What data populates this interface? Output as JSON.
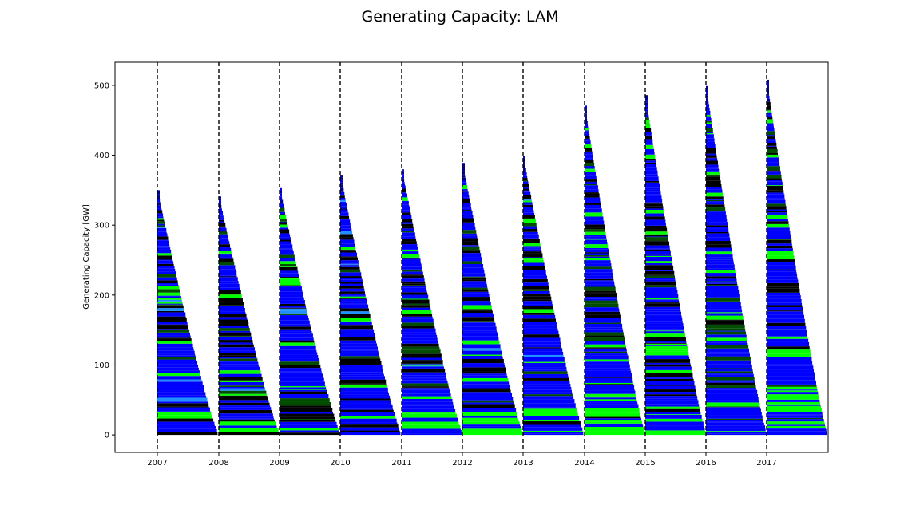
{
  "chart_data": {
    "type": "bar",
    "title": "Generating Capacity: LAM",
    "xlabel": "",
    "ylabel": "Generating Capacity [GW]",
    "x_ticks": [
      "2007",
      "2008",
      "2009",
      "2010",
      "2011",
      "2012",
      "2013",
      "2014",
      "2015",
      "2016",
      "2017"
    ],
    "y_ticks": [
      "0",
      "100",
      "200",
      "300",
      "400",
      "500"
    ],
    "ylim": [
      -25,
      533
    ],
    "grid": false,
    "legend": "none",
    "bar_style": "stacked horizontal capacity bars, each year's stack tapering from the peak total down to the following year",
    "colors": {
      "dark_navy": "#00008b",
      "blue": "#0000ff",
      "black": "#000000",
      "green": "#00ff00",
      "dark_green": "#004d00",
      "light_blue": "#1e90ff",
      "vline": "#000000"
    },
    "series": [
      {
        "year": "2007",
        "peak_total": 350
      },
      {
        "year": "2008",
        "peak_total": 341
      },
      {
        "year": "2009",
        "peak_total": 353
      },
      {
        "year": "2010",
        "peak_total": 372
      },
      {
        "year": "2011",
        "peak_total": 380
      },
      {
        "year": "2012",
        "peak_total": 389
      },
      {
        "year": "2013",
        "peak_total": 399
      },
      {
        "year": "2014",
        "peak_total": 471
      },
      {
        "year": "2015",
        "peak_total": 486
      },
      {
        "year": "2016",
        "peak_total": 499
      },
      {
        "year": "2017",
        "peak_total": 508
      }
    ]
  }
}
